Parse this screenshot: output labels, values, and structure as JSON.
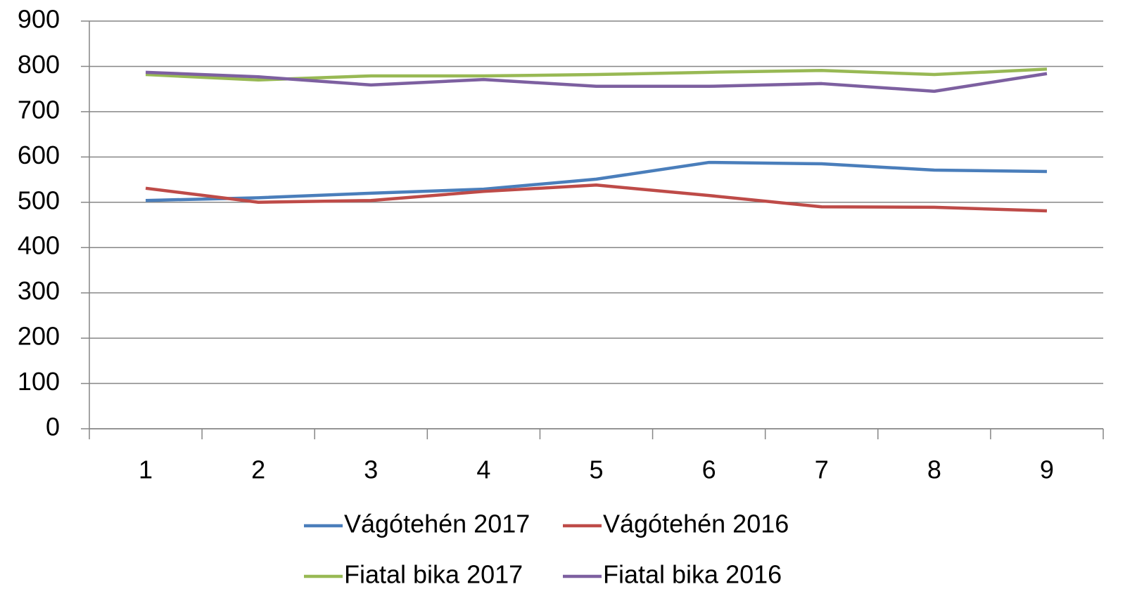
{
  "chart_data": {
    "type": "line",
    "categories": [
      "1",
      "2",
      "3",
      "4",
      "5",
      "6",
      "7",
      "8",
      "9"
    ],
    "series": [
      {
        "name": "Vágótehén 2017",
        "color": "#4a7ebb",
        "values": [
          504,
          510,
          520,
          529,
          551,
          588,
          585,
          571,
          568
        ]
      },
      {
        "name": "Vágótehén 2016",
        "color": "#be4b48",
        "values": [
          531,
          500,
          504,
          524,
          538,
          515,
          490,
          489,
          481
        ]
      },
      {
        "name": "Fiatal bika 2017",
        "color": "#98b954",
        "values": [
          782,
          770,
          779,
          779,
          782,
          787,
          791,
          782,
          794
        ]
      },
      {
        "name": "Fiatal bika 2016",
        "color": "#7d60a0",
        "values": [
          787,
          777,
          759,
          771,
          756,
          756,
          762,
          745,
          784
        ]
      }
    ],
    "ylim": [
      0,
      900
    ],
    "yticks": [
      0,
      100,
      200,
      300,
      400,
      500,
      600,
      700,
      800,
      900
    ],
    "grid": true,
    "legend": "bottom"
  }
}
